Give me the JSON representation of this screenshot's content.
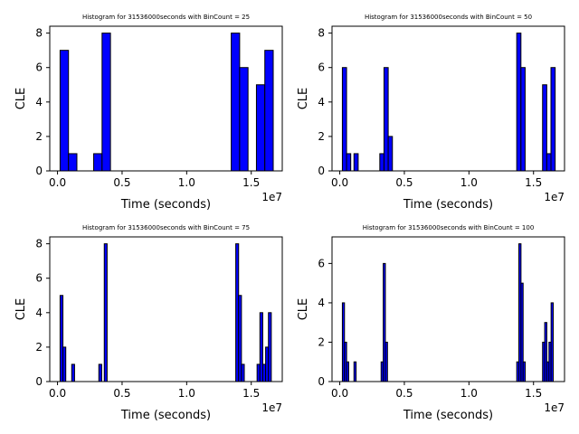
{
  "chart_data": [
    {
      "type": "bar",
      "title": "Histogram for 31536000seconds with BinCount = 25",
      "xlabel": "Time (seconds)",
      "ylabel": "CLE",
      "x_offset_label": "1e7",
      "xlim": [
        -0.06,
        1.74
      ],
      "ylim": [
        0,
        8.4
      ],
      "xticks": [
        0,
        0.5,
        1.0,
        1.5
      ],
      "xtick_labels": [
        "0.0",
        "0.5",
        "1.0",
        "1.5"
      ],
      "yticks": [
        0,
        2,
        4,
        6,
        8
      ],
      "ytick_labels": [
        "0",
        "2",
        "4",
        "6",
        "8"
      ],
      "bar_color": "#0000ff",
      "edge_color": "#000000",
      "bins": [
        {
          "x0": 0.02,
          "x1": 0.085,
          "count": 7
        },
        {
          "x0": 0.085,
          "x1": 0.15,
          "count": 1
        },
        {
          "x0": 0.28,
          "x1": 0.345,
          "count": 1
        },
        {
          "x0": 0.345,
          "x1": 0.41,
          "count": 8
        },
        {
          "x0": 1.345,
          "x1": 1.41,
          "count": 8
        },
        {
          "x0": 1.41,
          "x1": 1.475,
          "count": 6
        },
        {
          "x0": 1.54,
          "x1": 1.605,
          "count": 5
        },
        {
          "x0": 1.605,
          "x1": 1.67,
          "count": 7
        }
      ]
    },
    {
      "type": "bar",
      "title": "Histogram for 31536000seconds with BinCount = 50",
      "xlabel": "Time (seconds)",
      "ylabel": "CLE",
      "x_offset_label": "1e7",
      "xlim": [
        -0.06,
        1.74
      ],
      "ylim": [
        0,
        8.4
      ],
      "xticks": [
        0,
        0.5,
        1.0,
        1.5
      ],
      "xtick_labels": [
        "0.0",
        "0.5",
        "1.0",
        "1.5"
      ],
      "yticks": [
        0,
        2,
        4,
        6,
        8
      ],
      "ytick_labels": [
        "0",
        "2",
        "4",
        "6",
        "8"
      ],
      "bar_color": "#0000ff",
      "edge_color": "#000000",
      "bins": [
        {
          "x0": 0.02,
          "x1": 0.0525,
          "count": 6
        },
        {
          "x0": 0.0525,
          "x1": 0.085,
          "count": 1
        },
        {
          "x0": 0.11,
          "x1": 0.1425,
          "count": 1
        },
        {
          "x0": 0.31,
          "x1": 0.3425,
          "count": 1
        },
        {
          "x0": 0.3425,
          "x1": 0.375,
          "count": 6
        },
        {
          "x0": 0.375,
          "x1": 0.4075,
          "count": 2
        },
        {
          "x0": 1.37,
          "x1": 1.4025,
          "count": 8
        },
        {
          "x0": 1.4025,
          "x1": 1.435,
          "count": 6
        },
        {
          "x0": 1.57,
          "x1": 1.6025,
          "count": 5
        },
        {
          "x0": 1.6025,
          "x1": 1.635,
          "count": 1
        },
        {
          "x0": 1.635,
          "x1": 1.6675,
          "count": 6
        }
      ]
    },
    {
      "type": "bar",
      "title": "Histogram for 31536000seconds with BinCount = 75",
      "xlabel": "Time (seconds)",
      "ylabel": "CLE",
      "x_offset_label": "1e7",
      "xlim": [
        -0.06,
        1.74
      ],
      "ylim": [
        0,
        8.4
      ],
      "xticks": [
        0,
        0.5,
        1.0,
        1.5
      ],
      "xtick_labels": [
        "0.0",
        "0.5",
        "1.0",
        "1.5"
      ],
      "yticks": [
        0,
        2,
        4,
        6,
        8
      ],
      "ytick_labels": [
        "0",
        "2",
        "4",
        "6",
        "8"
      ],
      "bar_color": "#0000ff",
      "edge_color": "#000000",
      "bins": [
        {
          "x0": 0.02,
          "x1": 0.042,
          "count": 5
        },
        {
          "x0": 0.042,
          "x1": 0.064,
          "count": 2
        },
        {
          "x0": 0.11,
          "x1": 0.132,
          "count": 1
        },
        {
          "x0": 0.32,
          "x1": 0.342,
          "count": 1
        },
        {
          "x0": 0.362,
          "x1": 0.384,
          "count": 8
        },
        {
          "x0": 1.38,
          "x1": 1.402,
          "count": 8
        },
        {
          "x0": 1.402,
          "x1": 1.424,
          "count": 5
        },
        {
          "x0": 1.424,
          "x1": 1.446,
          "count": 1
        },
        {
          "x0": 1.545,
          "x1": 1.567,
          "count": 1
        },
        {
          "x0": 1.567,
          "x1": 1.589,
          "count": 4
        },
        {
          "x0": 1.589,
          "x1": 1.611,
          "count": 1
        },
        {
          "x0": 1.611,
          "x1": 1.633,
          "count": 2
        },
        {
          "x0": 1.633,
          "x1": 1.655,
          "count": 4
        }
      ]
    },
    {
      "type": "bar",
      "title": "Histogram for 31536000seconds with BinCount = 100",
      "xlabel": "Time (seconds)",
      "ylabel": "CLE",
      "x_offset_label": "1e7",
      "xlim": [
        -0.06,
        1.74
      ],
      "ylim": [
        0,
        7.35
      ],
      "xticks": [
        0,
        0.5,
        1.0,
        1.5
      ],
      "xtick_labels": [
        "0.0",
        "0.5",
        "1.0",
        "1.5"
      ],
      "yticks": [
        0,
        2,
        4,
        6
      ],
      "ytick_labels": [
        "0",
        "2",
        "4",
        "6"
      ],
      "bar_color": "#0000ff",
      "edge_color": "#000000",
      "bins": [
        {
          "x0": 0.02,
          "x1": 0.0365,
          "count": 4
        },
        {
          "x0": 0.0365,
          "x1": 0.053,
          "count": 2
        },
        {
          "x0": 0.053,
          "x1": 0.0695,
          "count": 1
        },
        {
          "x0": 0.11,
          "x1": 0.1265,
          "count": 1
        },
        {
          "x0": 0.32,
          "x1": 0.3365,
          "count": 1
        },
        {
          "x0": 0.3365,
          "x1": 0.353,
          "count": 6
        },
        {
          "x0": 0.353,
          "x1": 0.3695,
          "count": 2
        },
        {
          "x0": 1.37,
          "x1": 1.3865,
          "count": 1
        },
        {
          "x0": 1.3865,
          "x1": 1.403,
          "count": 7
        },
        {
          "x0": 1.403,
          "x1": 1.4195,
          "count": 5
        },
        {
          "x0": 1.4195,
          "x1": 1.436,
          "count": 1
        },
        {
          "x0": 1.57,
          "x1": 1.5865,
          "count": 2
        },
        {
          "x0": 1.5865,
          "x1": 1.603,
          "count": 3
        },
        {
          "x0": 1.603,
          "x1": 1.6195,
          "count": 1
        },
        {
          "x0": 1.6195,
          "x1": 1.636,
          "count": 2
        },
        {
          "x0": 1.636,
          "x1": 1.6525,
          "count": 4
        }
      ]
    }
  ]
}
